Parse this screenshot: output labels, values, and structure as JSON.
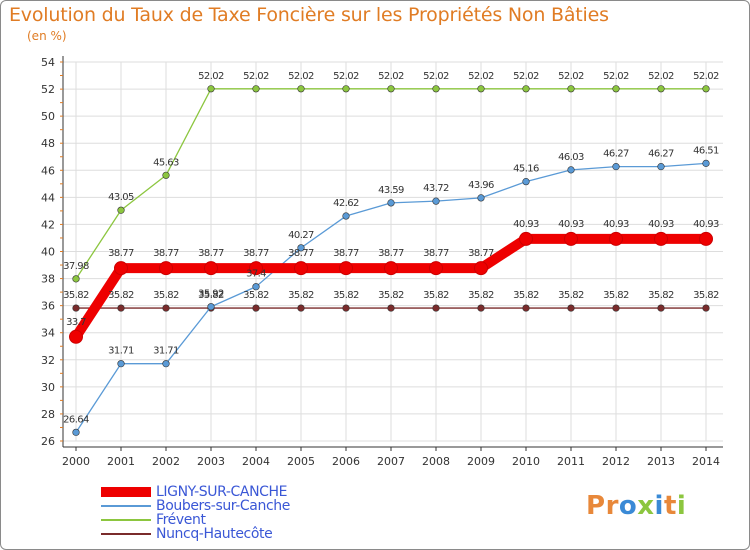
{
  "title": "Evolution du Taux de Taxe Foncière sur les Propriétés Non Bâties",
  "subtitle": "(en %)",
  "logo": "Proxiti",
  "colors": {
    "title": "#e07c24",
    "legend_text": "#3a57d6",
    "grid": "#dddddd",
    "axis": "#e07c24",
    "logo_letters": [
      "#e8883a",
      "#e8883a",
      "#3a8ad6",
      "#8cc63f",
      "#3a8ad6",
      "#e8883a",
      "#8cc63f"
    ]
  },
  "chart_data": {
    "type": "line",
    "title": "Evolution du Taux de Taxe Foncière sur les Propriétés Non Bâties",
    "ylabel": "(en %)",
    "xlabel": "",
    "ylim": [
      26,
      54
    ],
    "yticks": [
      "26",
      "28",
      "30",
      "32",
      "34",
      "36",
      "38",
      "40",
      "42",
      "44",
      "46",
      "48",
      "50",
      "52",
      "54"
    ],
    "categories": [
      "2000",
      "2001",
      "2002",
      "2003",
      "2004",
      "2005",
      "2006",
      "2007",
      "2008",
      "2009",
      "2010",
      "2011",
      "2012",
      "2013",
      "2014"
    ],
    "grid": true,
    "legend_position": "bottom-left",
    "series": [
      {
        "name": "Nuncq-Hautecôte",
        "color": "#7a2b2b",
        "values": [
          35.82,
          35.82,
          35.82,
          35.82,
          35.82,
          35.82,
          35.82,
          35.82,
          35.82,
          35.82,
          35.82,
          35.82,
          35.82,
          35.82,
          35.82
        ],
        "labels": [
          "35.82",
          "35.82",
          "35.82",
          "35.82",
          "35.82",
          "35.82",
          "35.82",
          "35.82",
          "35.82",
          "35.82",
          "35.82",
          "35.82",
          "35.82",
          "35.82",
          "35.82"
        ]
      },
      {
        "name": "Frévent",
        "color": "#8cc63f",
        "values": [
          37.98,
          43.05,
          45.63,
          52.02,
          52.02,
          52.02,
          52.02,
          52.02,
          52.02,
          52.02,
          52.02,
          52.02,
          52.02,
          52.02,
          52.02
        ],
        "labels": [
          "37.98",
          "43.05",
          "45.63",
          "52.02",
          "52.02",
          "52.02",
          "52.02",
          "52.02",
          "52.02",
          "52.02",
          "52.02",
          "52.02",
          "52.02",
          "52.02",
          "52.02"
        ]
      },
      {
        "name": "Boubers-sur-Canche",
        "color": "#5a9ad6",
        "values": [
          26.64,
          31.71,
          31.71,
          35.92,
          37.4,
          40.27,
          42.62,
          43.59,
          43.72,
          43.96,
          45.16,
          46.03,
          46.27,
          46.27,
          46.51
        ],
        "labels": [
          "26.64",
          "31.71",
          "31.71",
          "35.92",
          "37.4",
          "40.27",
          "42.62",
          "43.59",
          "43.72",
          "43.96",
          "45.16",
          "46.03",
          "46.27",
          "46.27",
          "46.51"
        ]
      },
      {
        "name": "LIGNY-SUR-CANCHE",
        "color": "#ee0000",
        "values": [
          33.7,
          38.77,
          38.77,
          38.77,
          38.77,
          38.77,
          38.77,
          38.77,
          38.77,
          38.77,
          40.93,
          40.93,
          40.93,
          40.93,
          40.93
        ],
        "labels": [
          "33.7",
          "38.77",
          "38.77",
          "38.77",
          "38.77",
          "38.77",
          "38.77",
          "38.77",
          "38.77",
          "38.77",
          "40.93",
          "40.93",
          "40.93",
          "40.93",
          "40.93"
        ]
      }
    ],
    "legend": [
      "LIGNY-SUR-CANCHE",
      "Boubers-sur-Canche",
      "Frévent",
      "Nuncq-Hautecôte"
    ]
  }
}
